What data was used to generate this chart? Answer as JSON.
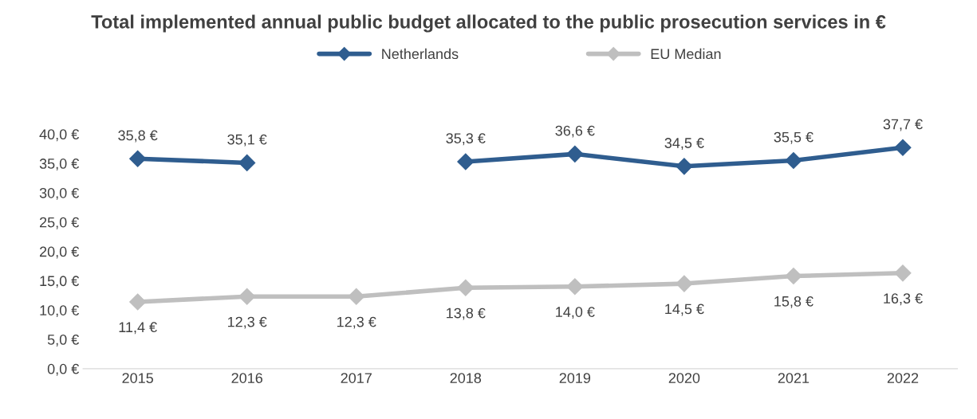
{
  "chart_data": {
    "type": "line",
    "title": "Total implemented annual public budget allocated to the public prosecution services in €",
    "categories": [
      "2015",
      "2016",
      "2017",
      "2018",
      "2019",
      "2020",
      "2021",
      "2022"
    ],
    "series": [
      {
        "name": "Netherlands",
        "color": "#2f5d8f",
        "values": [
          35.8,
          35.1,
          null,
          35.3,
          36.6,
          34.5,
          35.5,
          37.7
        ],
        "value_labels": [
          "35,8 €",
          "35,1 €",
          null,
          "35,3 €",
          "36,6 €",
          "34,5 €",
          "35,5 €",
          "37,7 €"
        ]
      },
      {
        "name": "EU Median",
        "color": "#bfbfbf",
        "values": [
          11.4,
          12.3,
          12.3,
          13.8,
          14.0,
          14.5,
          15.8,
          16.3
        ],
        "value_labels": [
          "11,4 €",
          "12,3 €",
          "12,3 €",
          "13,8 €",
          "14,0 €",
          "14,5 €",
          "15,8 €",
          "16,3 €"
        ]
      }
    ],
    "ylim": [
      0,
      40
    ],
    "yticks": [
      {
        "value": 0,
        "label": "0,0 €"
      },
      {
        "value": 5,
        "label": "5,0 €"
      },
      {
        "value": 10,
        "label": "10,0 €"
      },
      {
        "value": 15,
        "label": "15,0 €"
      },
      {
        "value": 20,
        "label": "20,0 €"
      },
      {
        "value": 25,
        "label": "25,0 €"
      },
      {
        "value": 30,
        "label": "30,0 €"
      },
      {
        "value": 35,
        "label": "35,0 €"
      },
      {
        "value": 40,
        "label": "40,0 €"
      }
    ],
    "marker": "diamond",
    "line_style": "solid",
    "grid": false,
    "legend": "top"
  }
}
